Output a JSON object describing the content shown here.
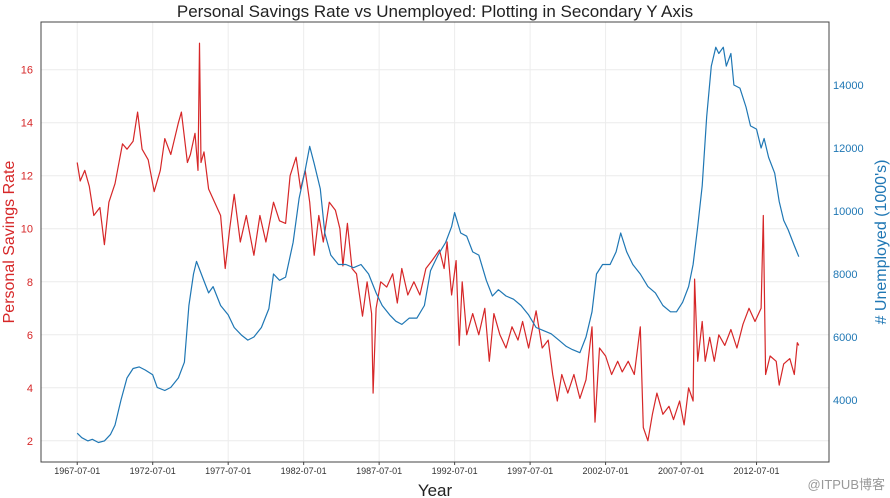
{
  "chart_data": {
    "type": "line",
    "title": "Personal Savings Rate vs Unemployed: Plotting in Secondary Y Axis",
    "xlabel": "Year",
    "x_ticks": [
      "1967-07-01",
      "1972-07-01",
      "1977-07-01",
      "1982-07-01",
      "1987-07-01",
      "1992-07-01",
      "1997-07-01",
      "2002-07-01",
      "2007-07-01",
      "2012-07-01"
    ],
    "x_tick_years": [
      1967.5,
      1972.5,
      1977.5,
      1982.5,
      1987.5,
      1992.5,
      1997.5,
      2002.5,
      2007.5,
      2012.5
    ],
    "xlim": [
      1965.1,
      2017.3
    ],
    "grid": true,
    "left_axis": {
      "label": "Personal Savings Rate",
      "color": "#d62728",
      "ticks": [
        "2",
        "4",
        "6",
        "8",
        "10",
        "12",
        "14",
        "16"
      ],
      "ylim": [
        1.2,
        17.8
      ]
    },
    "right_axis": {
      "label": "# Unemployed (1000's)",
      "color": "#1f77b4",
      "ticks": [
        "4000",
        "6000",
        "8000",
        "10000",
        "12000",
        "14000"
      ],
      "ylim": [
        2030,
        16000
      ]
    },
    "series": [
      {
        "name": "psavert",
        "axis": "left",
        "color": "#d62728",
        "points": [
          [
            1967.5,
            12.5
          ],
          [
            1967.7,
            11.8
          ],
          [
            1968.0,
            12.2
          ],
          [
            1968.3,
            11.6
          ],
          [
            1968.6,
            10.5
          ],
          [
            1969.0,
            10.8
          ],
          [
            1969.3,
            9.4
          ],
          [
            1969.6,
            11.0
          ],
          [
            1970.0,
            11.7
          ],
          [
            1970.5,
            13.2
          ],
          [
            1970.8,
            13.0
          ],
          [
            1971.2,
            13.3
          ],
          [
            1971.5,
            14.4
          ],
          [
            1971.8,
            13.0
          ],
          [
            1972.2,
            12.6
          ],
          [
            1972.6,
            11.4
          ],
          [
            1973.0,
            12.2
          ],
          [
            1973.3,
            13.4
          ],
          [
            1973.7,
            12.8
          ],
          [
            1974.2,
            14.0
          ],
          [
            1974.4,
            14.4
          ],
          [
            1974.8,
            12.5
          ],
          [
            1975.0,
            12.8
          ],
          [
            1975.3,
            13.6
          ],
          [
            1975.5,
            12.2
          ],
          [
            1975.6,
            17.0
          ],
          [
            1975.7,
            12.5
          ],
          [
            1975.9,
            12.9
          ],
          [
            1976.2,
            11.5
          ],
          [
            1976.6,
            11.0
          ],
          [
            1977.0,
            10.5
          ],
          [
            1977.3,
            8.5
          ],
          [
            1977.6,
            10.0
          ],
          [
            1977.9,
            11.3
          ],
          [
            1978.3,
            9.5
          ],
          [
            1978.7,
            10.5
          ],
          [
            1979.2,
            9.0
          ],
          [
            1979.6,
            10.5
          ],
          [
            1980.0,
            9.5
          ],
          [
            1980.5,
            11.0
          ],
          [
            1980.9,
            10.3
          ],
          [
            1981.3,
            10.2
          ],
          [
            1981.6,
            12.0
          ],
          [
            1982.0,
            12.7
          ],
          [
            1982.3,
            11.5
          ],
          [
            1982.6,
            12.2
          ],
          [
            1982.9,
            11.0
          ],
          [
            1983.2,
            9.0
          ],
          [
            1983.5,
            10.5
          ],
          [
            1983.8,
            9.5
          ],
          [
            1984.2,
            11.0
          ],
          [
            1984.6,
            10.7
          ],
          [
            1984.9,
            10.0
          ],
          [
            1985.1,
            8.6
          ],
          [
            1985.4,
            10.2
          ],
          [
            1985.7,
            8.5
          ],
          [
            1986.0,
            8.3
          ],
          [
            1986.4,
            6.7
          ],
          [
            1986.7,
            8.0
          ],
          [
            1987.0,
            6.8
          ],
          [
            1987.1,
            3.8
          ],
          [
            1987.3,
            7.0
          ],
          [
            1987.6,
            8.0
          ],
          [
            1988.0,
            7.8
          ],
          [
            1988.4,
            8.3
          ],
          [
            1988.7,
            7.2
          ],
          [
            1989.0,
            8.5
          ],
          [
            1989.4,
            7.5
          ],
          [
            1989.8,
            8.0
          ],
          [
            1990.2,
            7.5
          ],
          [
            1990.6,
            8.5
          ],
          [
            1991.0,
            8.8
          ],
          [
            1991.5,
            9.2
          ],
          [
            1991.8,
            8.5
          ],
          [
            1992.0,
            9.5
          ],
          [
            1992.3,
            7.5
          ],
          [
            1992.6,
            8.8
          ],
          [
            1992.8,
            5.6
          ],
          [
            1993.0,
            8.0
          ],
          [
            1993.3,
            6.0
          ],
          [
            1993.7,
            6.8
          ],
          [
            1994.1,
            6.0
          ],
          [
            1994.5,
            7.0
          ],
          [
            1994.8,
            5.0
          ],
          [
            1995.1,
            6.8
          ],
          [
            1995.5,
            6.0
          ],
          [
            1995.9,
            5.5
          ],
          [
            1996.3,
            6.3
          ],
          [
            1996.7,
            5.8
          ],
          [
            1997.0,
            6.5
          ],
          [
            1997.4,
            5.5
          ],
          [
            1997.9,
            6.9
          ],
          [
            1998.3,
            5.5
          ],
          [
            1998.7,
            5.8
          ],
          [
            1999.0,
            4.5
          ],
          [
            1999.3,
            3.5
          ],
          [
            1999.6,
            4.5
          ],
          [
            2000.0,
            3.8
          ],
          [
            2000.4,
            4.5
          ],
          [
            2000.8,
            3.6
          ],
          [
            2001.2,
            4.3
          ],
          [
            2001.6,
            6.3
          ],
          [
            2001.8,
            2.7
          ],
          [
            2002.1,
            5.5
          ],
          [
            2002.5,
            5.2
          ],
          [
            2002.9,
            4.5
          ],
          [
            2003.3,
            5.0
          ],
          [
            2003.6,
            4.6
          ],
          [
            2004.0,
            5.0
          ],
          [
            2004.4,
            4.5
          ],
          [
            2004.8,
            6.3
          ],
          [
            2005.0,
            2.5
          ],
          [
            2005.3,
            2.0
          ],
          [
            2005.6,
            3.0
          ],
          [
            2005.9,
            3.8
          ],
          [
            2006.3,
            3.0
          ],
          [
            2006.7,
            3.3
          ],
          [
            2007.0,
            2.8
          ],
          [
            2007.4,
            3.5
          ],
          [
            2007.7,
            2.6
          ],
          [
            2008.0,
            4.0
          ],
          [
            2008.3,
            3.5
          ],
          [
            2008.4,
            8.1
          ],
          [
            2008.6,
            5.0
          ],
          [
            2008.9,
            6.5
          ],
          [
            2009.1,
            5.0
          ],
          [
            2009.4,
            5.9
          ],
          [
            2009.7,
            5.0
          ],
          [
            2010.0,
            6.0
          ],
          [
            2010.4,
            5.6
          ],
          [
            2010.8,
            6.2
          ],
          [
            2011.2,
            5.5
          ],
          [
            2011.6,
            6.4
          ],
          [
            2012.0,
            7.0
          ],
          [
            2012.4,
            6.5
          ],
          [
            2012.8,
            7.0
          ],
          [
            2012.95,
            10.5
          ],
          [
            2013.1,
            4.5
          ],
          [
            2013.4,
            5.2
          ],
          [
            2013.8,
            5.0
          ],
          [
            2014.0,
            4.1
          ],
          [
            2014.3,
            4.9
          ],
          [
            2014.7,
            5.1
          ],
          [
            2015.0,
            4.5
          ],
          [
            2015.2,
            5.7
          ],
          [
            2015.3,
            5.6
          ]
        ]
      },
      {
        "name": "unemploy",
        "axis": "right",
        "color": "#1f77b4",
        "points": [
          [
            1967.5,
            2944
          ],
          [
            1967.8,
            2800
          ],
          [
            1968.2,
            2700
          ],
          [
            1968.5,
            2750
          ],
          [
            1968.9,
            2650
          ],
          [
            1969.3,
            2700
          ],
          [
            1969.7,
            2900
          ],
          [
            1970.0,
            3200
          ],
          [
            1970.4,
            4000
          ],
          [
            1970.8,
            4700
          ],
          [
            1971.2,
            5000
          ],
          [
            1971.6,
            5050
          ],
          [
            1972.0,
            4950
          ],
          [
            1972.5,
            4800
          ],
          [
            1972.8,
            4400
          ],
          [
            1973.3,
            4300
          ],
          [
            1973.7,
            4400
          ],
          [
            1974.2,
            4700
          ],
          [
            1974.6,
            5200
          ],
          [
            1974.9,
            7000
          ],
          [
            1975.2,
            8000
          ],
          [
            1975.4,
            8400
          ],
          [
            1975.8,
            7900
          ],
          [
            1976.2,
            7400
          ],
          [
            1976.5,
            7600
          ],
          [
            1977.0,
            7000
          ],
          [
            1977.5,
            6700
          ],
          [
            1977.9,
            6300
          ],
          [
            1978.4,
            6050
          ],
          [
            1978.8,
            5900
          ],
          [
            1979.2,
            6000
          ],
          [
            1979.7,
            6300
          ],
          [
            1980.2,
            6900
          ],
          [
            1980.5,
            8000
          ],
          [
            1980.9,
            7800
          ],
          [
            1981.3,
            7900
          ],
          [
            1981.8,
            9000
          ],
          [
            1982.2,
            10400
          ],
          [
            1982.6,
            11300
          ],
          [
            1982.9,
            12050
          ],
          [
            1983.2,
            11500
          ],
          [
            1983.6,
            10700
          ],
          [
            1983.9,
            9300
          ],
          [
            1984.3,
            8600
          ],
          [
            1984.8,
            8300
          ],
          [
            1985.3,
            8300
          ],
          [
            1985.8,
            8200
          ],
          [
            1986.3,
            8300
          ],
          [
            1986.8,
            8000
          ],
          [
            1987.3,
            7400
          ],
          [
            1987.7,
            7000
          ],
          [
            1988.2,
            6700
          ],
          [
            1988.6,
            6500
          ],
          [
            1989.0,
            6400
          ],
          [
            1989.5,
            6600
          ],
          [
            1990.0,
            6600
          ],
          [
            1990.5,
            7000
          ],
          [
            1990.9,
            8100
          ],
          [
            1991.4,
            8600
          ],
          [
            1991.9,
            9000
          ],
          [
            1992.3,
            9500
          ],
          [
            1992.5,
            9950
          ],
          [
            1992.9,
            9300
          ],
          [
            1993.3,
            9200
          ],
          [
            1993.7,
            8700
          ],
          [
            1994.1,
            8600
          ],
          [
            1994.6,
            7800
          ],
          [
            1995.0,
            7300
          ],
          [
            1995.4,
            7500
          ],
          [
            1995.9,
            7300
          ],
          [
            1996.4,
            7200
          ],
          [
            1996.9,
            7000
          ],
          [
            1997.4,
            6700
          ],
          [
            1997.9,
            6300
          ],
          [
            1998.4,
            6200
          ],
          [
            1998.9,
            6100
          ],
          [
            1999.4,
            5900
          ],
          [
            1999.9,
            5700
          ],
          [
            2000.3,
            5600
          ],
          [
            2000.8,
            5500
          ],
          [
            2001.2,
            6000
          ],
          [
            2001.6,
            6800
          ],
          [
            2001.9,
            8000
          ],
          [
            2002.3,
            8300
          ],
          [
            2002.8,
            8300
          ],
          [
            2003.2,
            8700
          ],
          [
            2003.5,
            9300
          ],
          [
            2003.9,
            8700
          ],
          [
            2004.3,
            8300
          ],
          [
            2004.8,
            8000
          ],
          [
            2005.3,
            7600
          ],
          [
            2005.8,
            7400
          ],
          [
            2006.3,
            7000
          ],
          [
            2006.8,
            6800
          ],
          [
            2007.2,
            6800
          ],
          [
            2007.6,
            7100
          ],
          [
            2008.0,
            7600
          ],
          [
            2008.3,
            8300
          ],
          [
            2008.6,
            9500
          ],
          [
            2008.9,
            10800
          ],
          [
            2009.2,
            13000
          ],
          [
            2009.5,
            14600
          ],
          [
            2009.8,
            15200
          ],
          [
            2010.0,
            15000
          ],
          [
            2010.3,
            15200
          ],
          [
            2010.5,
            14600
          ],
          [
            2010.8,
            15000
          ],
          [
            2011.0,
            14000
          ],
          [
            2011.4,
            13900
          ],
          [
            2011.8,
            13300
          ],
          [
            2012.1,
            12700
          ],
          [
            2012.5,
            12600
          ],
          [
            2012.8,
            12000
          ],
          [
            2013.0,
            12300
          ],
          [
            2013.3,
            11700
          ],
          [
            2013.7,
            11200
          ],
          [
            2014.0,
            10300
          ],
          [
            2014.3,
            9700
          ],
          [
            2014.6,
            9400
          ],
          [
            2015.0,
            8900
          ],
          [
            2015.3,
            8549
          ]
        ]
      }
    ]
  },
  "watermark": "@ITPUB博客"
}
